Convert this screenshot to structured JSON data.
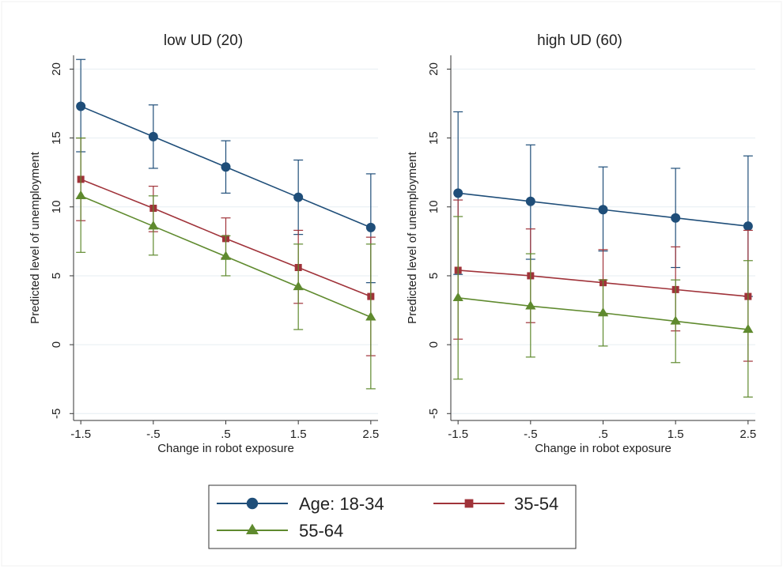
{
  "chart_data": {
    "type": "line",
    "x": [
      -1.5,
      -0.5,
      0.5,
      1.5,
      2.5
    ],
    "x_tick_labels": [
      "-1.5",
      "-.5",
      ".5",
      "1.5",
      "2.5"
    ],
    "y_ticks": [
      -5,
      0,
      5,
      10,
      15,
      20
    ],
    "y_tick_labels": [
      "-5",
      "0",
      "5",
      "10",
      "15",
      "20"
    ],
    "xlim": [
      -1.6,
      2.6
    ],
    "ylim": [
      -5.5,
      21
    ],
    "xlabel": "Change in robot exposure",
    "ylabel": "Predicted level of unemployment",
    "grid": true,
    "legend_placement": "bottom-center",
    "colors": {
      "age_18_34": "#1f4e79",
      "age_35_54": "#a0333a",
      "age_55_64": "#5f8a2e",
      "gridline": "#e6eef2"
    },
    "legend": [
      {
        "label": "Age: 18-34",
        "marker": "circle",
        "color_key": "age_18_34"
      },
      {
        "label": "35-54",
        "marker": "square",
        "color_key": "age_35_54"
      },
      {
        "label": "55-64",
        "marker": "triangle",
        "color_key": "age_55_64"
      }
    ],
    "panels": [
      {
        "title": "low UD (20)",
        "series": [
          {
            "name": "Age: 18-34",
            "marker": "circle",
            "color_key": "age_18_34",
            "values": [
              17.3,
              15.1,
              12.9,
              10.7,
              8.5
            ],
            "ci_low": [
              14.0,
              12.8,
              11.0,
              8.0,
              4.5
            ],
            "ci_high": [
              20.7,
              17.4,
              14.8,
              13.4,
              12.4
            ]
          },
          {
            "name": "35-54",
            "marker": "square",
            "color_key": "age_35_54",
            "values": [
              12.0,
              9.9,
              7.7,
              5.6,
              3.5
            ],
            "ci_low": [
              9.0,
              8.2,
              6.3,
              3.0,
              -0.8
            ],
            "ci_high": [
              15.0,
              11.5,
              9.2,
              8.3,
              7.8
            ]
          },
          {
            "name": "55-64",
            "marker": "triangle",
            "color_key": "age_55_64",
            "values": [
              10.8,
              8.6,
              6.4,
              4.2,
              2.0
            ],
            "ci_low": [
              6.7,
              6.5,
              5.0,
              1.1,
              -3.2
            ],
            "ci_high": [
              15.0,
              10.8,
              7.9,
              7.3,
              7.3
            ]
          }
        ]
      },
      {
        "title": "high UD (60)",
        "series": [
          {
            "name": "Age: 18-34",
            "marker": "circle",
            "color_key": "age_18_34",
            "values": [
              11.0,
              10.4,
              9.8,
              9.2,
              8.6
            ],
            "ci_low": [
              5.1,
              6.2,
              6.8,
              5.6,
              3.5
            ],
            "ci_high": [
              16.9,
              14.5,
              12.9,
              12.8,
              13.7
            ]
          },
          {
            "name": "35-54",
            "marker": "square",
            "color_key": "age_35_54",
            "values": [
              5.4,
              5.0,
              4.5,
              4.0,
              3.5
            ],
            "ci_low": [
              0.4,
              1.6,
              2.2,
              1.0,
              -1.2
            ],
            "ci_high": [
              10.5,
              8.4,
              6.9,
              7.1,
              8.3
            ]
          },
          {
            "name": "55-64",
            "marker": "triangle",
            "color_key": "age_55_64",
            "values": [
              3.4,
              2.8,
              2.3,
              1.7,
              1.1
            ],
            "ci_low": [
              -2.5,
              -0.9,
              -0.1,
              -1.3,
              -3.8
            ],
            "ci_high": [
              9.3,
              6.6,
              4.7,
              4.7,
              6.1
            ]
          }
        ]
      }
    ]
  }
}
